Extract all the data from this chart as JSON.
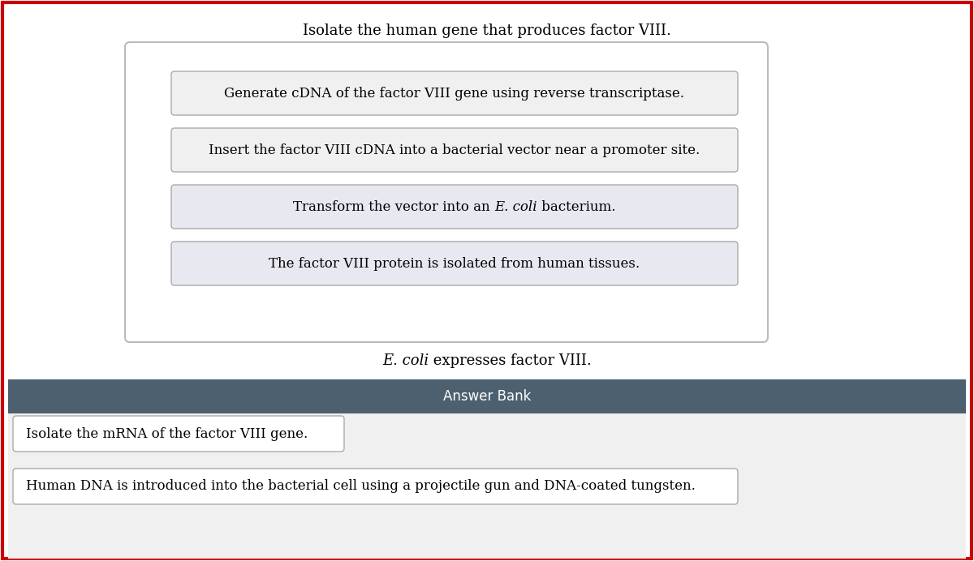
{
  "title": "Isolate the human gene that produces factor VIII.",
  "red_border": "#cc0000",
  "inner_steps": [
    "Generate cDNA of the factor VIII gene using reverse transcriptase.",
    "Insert the factor VIII cDNA into a bacterial vector near a promoter site.",
    "Transform the vector into an {italic}E. coli{/italic} bacterium.",
    "The factor VIII protein is isolated from human tissues."
  ],
  "step3_prefix": "Transform the vector into an ",
  "step3_italic": "E. coli",
  "step3_suffix": " bacterium.",
  "ecoli_italic": "E. coli",
  "ecoli_suffix": " expresses factor VIII.",
  "answer_bank_label": "Answer Bank",
  "answer_bank_bg": "#4d6070",
  "answer_bank_text_color": "#ffffff",
  "answer_items": [
    "Isolate the mRNA of the factor VIII gene.",
    "Human DNA is introduced into the bacterial cell using a projectile gun and DNA-coated tungsten."
  ],
  "bg_color": "#ffffff",
  "step_box_fill_light": "#eeeeff",
  "step_box_fill_white": "#f5f5f5",
  "step_box_edge": "#aaaaaa",
  "answer_section_bg": "#f0f0f0",
  "fontsize_title": 13,
  "fontsize_step": 12,
  "fontsize_answer_bank": 12,
  "fontsize_answer": 12,
  "fontsize_ecoli": 13
}
